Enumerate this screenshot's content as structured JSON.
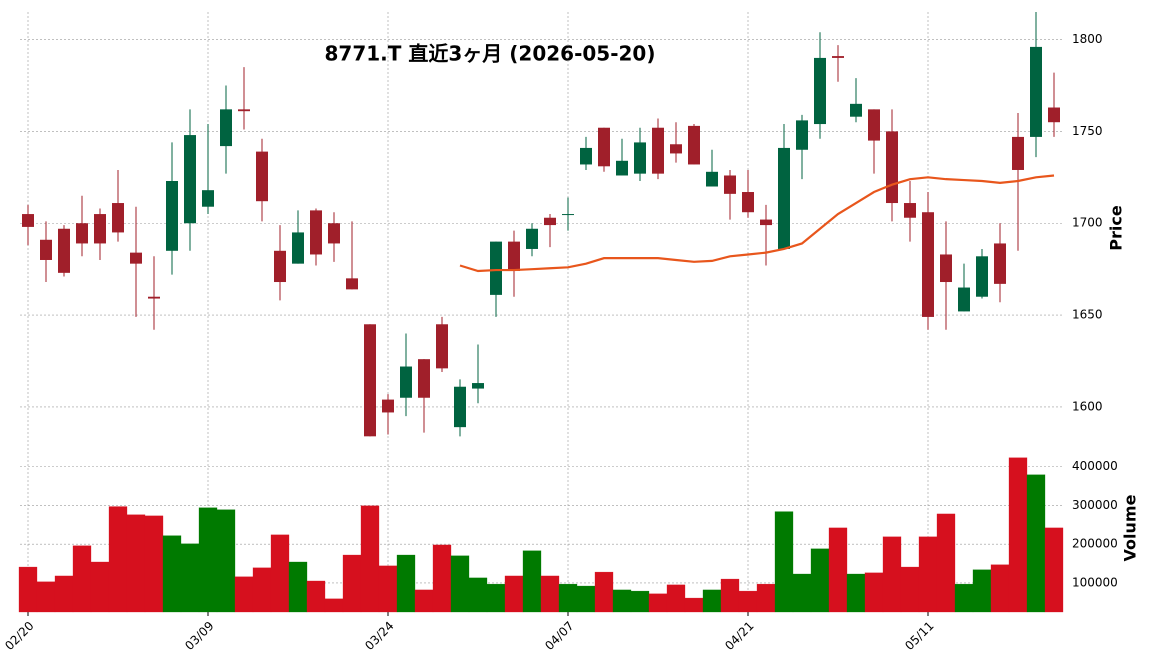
{
  "chart_data": {
    "type": "candlestick",
    "title": "8771.T 直近3ヶ月 (2026-05-20)",
    "categories": [
      "02/20",
      null,
      null,
      null,
      null,
      null,
      null,
      null,
      null,
      null,
      "03/09",
      null,
      null,
      null,
      null,
      null,
      null,
      null,
      null,
      null,
      "03/24",
      null,
      null,
      null,
      null,
      null,
      null,
      null,
      null,
      null,
      "04/07",
      null,
      null,
      null,
      null,
      null,
      null,
      null,
      null,
      null,
      "04/21",
      null,
      null,
      null,
      null,
      null,
      null,
      null,
      null,
      null,
      "05/11",
      null,
      null,
      null,
      null,
      null,
      null,
      null
    ],
    "open": [
      1705,
      1691,
      1697,
      1700,
      1705,
      1711,
      1684,
      1660,
      1685,
      1700,
      1709,
      1742,
      1762,
      1739,
      1685,
      1678,
      1707,
      1700,
      1670,
      1645,
      1604,
      1605,
      1626,
      1645,
      1589,
      1610,
      1661,
      1690,
      1686,
      1703,
      1705,
      1732,
      1752,
      1726,
      1727,
      1752,
      1743,
      1753,
      1720,
      1726,
      1717,
      1702,
      1686,
      1740,
      1754,
      1791,
      1758,
      1762,
      1750,
      1711,
      1706,
      1683,
      1652,
      1660,
      1689,
      1747,
      1747,
      1763
    ],
    "high": [
      1710,
      1701,
      1699,
      1715,
      1708,
      1729,
      1709,
      1682,
      1744,
      1762,
      1754,
      1775,
      1785,
      1746,
      1699,
      1707,
      1708,
      1706,
      1701,
      1645,
      1607,
      1640,
      1626,
      1649,
      1615,
      1634,
      1690,
      1696,
      1700,
      1705,
      1714,
      1747,
      1752,
      1746,
      1752,
      1757,
      1755,
      1754,
      1740,
      1729,
      1729,
      1710,
      1754,
      1759,
      1804,
      1797,
      1779,
      1762,
      1762,
      1723,
      1717,
      1701,
      1678,
      1686,
      1700,
      1760,
      1815,
      1782
    ],
    "low": [
      1688,
      1668,
      1671,
      1682,
      1680,
      1690,
      1649,
      1642,
      1672,
      1685,
      1705,
      1727,
      1751,
      1701,
      1658,
      1678,
      1677,
      1679,
      1664,
      1584,
      1585,
      1595,
      1586,
      1619,
      1584,
      1602,
      1649,
      1660,
      1682,
      1687,
      1696,
      1729,
      1728,
      1726,
      1723,
      1724,
      1733,
      1732,
      1720,
      1702,
      1703,
      1677,
      1686,
      1724,
      1746,
      1777,
      1755,
      1727,
      1701,
      1690,
      1642,
      1642,
      1652,
      1659,
      1657,
      1685,
      1736,
      1747
    ],
    "close": [
      1698,
      1680,
      1673,
      1689,
      1689,
      1695,
      1678,
      1659,
      1723,
      1748,
      1718,
      1762,
      1761,
      1712,
      1668,
      1695,
      1683,
      1689,
      1664,
      1584,
      1597,
      1622,
      1605,
      1621,
      1611,
      1613,
      1690,
      1674,
      1697,
      1699,
      1705,
      1741,
      1731,
      1734,
      1744,
      1727,
      1738,
      1732,
      1728,
      1716,
      1706,
      1699,
      1741,
      1756,
      1790,
      1790,
      1765,
      1745,
      1711,
      1703,
      1649,
      1668,
      1665,
      1682,
      1667,
      1729,
      1796,
      1755
    ],
    "up_color": "#006340",
    "down_color": "#a01f2a",
    "ma": {
      "color": "#e8561c",
      "values": [
        null,
        null,
        null,
        null,
        null,
        null,
        null,
        null,
        null,
        null,
        null,
        null,
        null,
        null,
        null,
        null,
        null,
        null,
        null,
        null,
        null,
        null,
        null,
        null,
        1677,
        1674,
        1674.5,
        1674.5,
        1675,
        1675.5,
        1676,
        1678,
        1681,
        1681,
        1681,
        1681,
        1680,
        1679,
        1679.5,
        1682,
        1683,
        1684,
        1686,
        1689,
        1697,
        1705,
        1711,
        1717,
        1721,
        1724,
        1725,
        1724,
        1723.5,
        1723,
        1722,
        1723,
        1725,
        1726
      ]
    },
    "ylabel": "Price",
    "ylim": [
      1582,
      1815
    ],
    "yticks": [
      1600,
      1650,
      1700,
      1750,
      1800
    ],
    "grid": true,
    "volume": {
      "ylabel": "Volume",
      "up_color": "#007a00",
      "down_color": "#d6101e",
      "values": [
        141000,
        103000,
        118000,
        196000,
        154000,
        297000,
        276000,
        273000,
        222000,
        201000,
        294000,
        289000,
        116000,
        139000,
        224000,
        154000,
        105000,
        59000,
        172000,
        299000,
        144000,
        172000,
        82000,
        198000,
        170000,
        113000,
        97000,
        118000,
        183000,
        118000,
        97000,
        92000,
        128000,
        82000,
        79000,
        72000,
        95000,
        61000,
        82000,
        110000,
        79000,
        97000,
        284000,
        123000,
        188000,
        242000,
        123000,
        126000,
        219000,
        141000,
        219000,
        278000,
        97000,
        134000,
        147000,
        423000,
        379000,
        242000
      ],
      "ylim": [
        25000,
        430000
      ],
      "yticks": [
        100000,
        200000,
        300000,
        400000
      ]
    }
  }
}
